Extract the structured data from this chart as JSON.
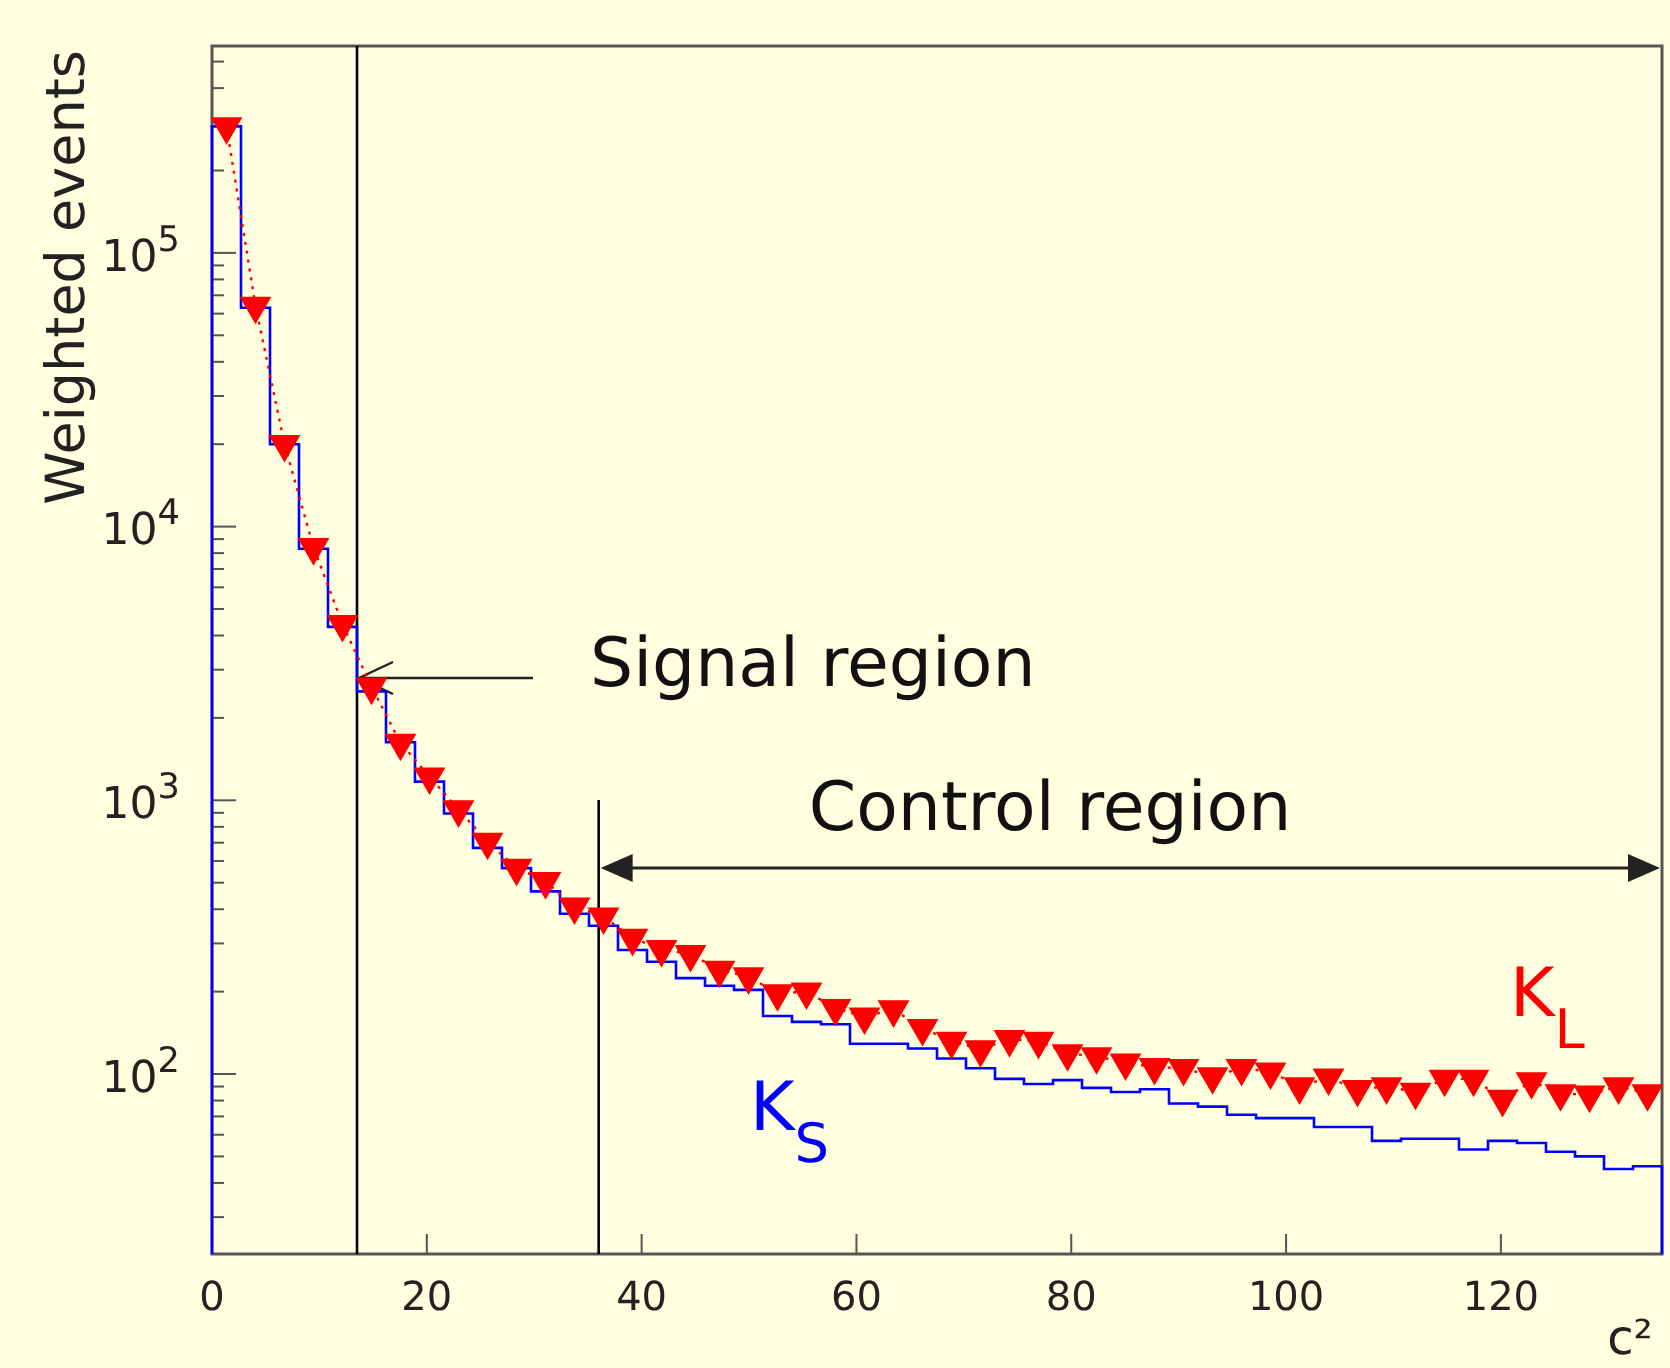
{
  "chart_data": {
    "type": "histogram",
    "xlabel": "c²",
    "ylabel": "Weighted events",
    "bins": [
      0,
      2.7,
      5.4,
      8.1,
      10.8,
      13.5,
      16.2,
      18.9,
      21.6,
      24.3,
      27,
      29.7,
      32.4,
      35.1,
      37.8,
      40.5,
      43.2,
      45.9,
      48.6,
      51.3,
      54,
      56.7,
      59.4,
      62.1,
      64.8,
      67.5,
      70.2,
      72.9,
      75.6,
      78.3,
      81,
      83.7,
      86.4,
      89.1,
      91.8,
      94.5,
      97.2,
      99.9,
      102.6,
      105.3,
      108,
      110.7,
      113.4,
      116.1,
      118.8,
      121.5,
      124.2,
      126.9,
      129.6,
      132.3,
      135
    ],
    "series": [
      {
        "name": "K$_{S}$",
        "color": "#0000ff",
        "values": [
          290000,
          63000,
          20000,
          8300,
          4300,
          2500,
          1630,
          1170,
          895,
          670,
          565,
          465,
          385,
          348,
          284,
          257,
          224,
          210,
          203,
          163,
          155,
          152,
          129,
          129,
          124,
          114,
          105,
          96,
          92,
          95,
          89,
          86,
          88,
          78,
          76,
          71,
          69,
          69,
          64,
          64,
          57,
          58,
          58,
          53,
          57,
          56,
          52,
          50,
          45,
          46
        ]
      },
      {
        "name": "K$_{L}$",
        "type": "line",
        "marker": "triangle",
        "line_style": "dotted",
        "color": "#ff0000",
        "x": [
          1.35,
          4.05,
          6.75,
          9.45,
          12.15,
          14.85,
          17.55,
          20.25,
          22.95,
          25.65,
          28.35,
          31.05,
          33.75,
          36.45,
          39.15,
          41.85,
          44.55,
          47.25,
          49.95,
          52.65,
          55.35,
          58.05,
          60.75,
          63.45,
          66.15,
          68.85,
          71.55,
          74.25,
          76.95,
          79.65,
          82.35,
          85.05,
          87.75,
          90.45,
          93.15,
          95.85,
          98.55,
          101.25,
          103.95,
          106.65,
          109.35,
          112.05,
          114.75,
          117.45,
          120.15,
          122.85,
          125.55,
          128.25,
          130.95,
          133.65
        ],
        "values": [
          290000,
          64000,
          20000,
          8400,
          4400,
          2600,
          1620,
          1220,
          925,
          705,
          566,
          506,
          409,
          376,
          314,
          286,
          274,
          240,
          227,
          197,
          200,
          174,
          162,
          172,
          147,
          132,
          123,
          134,
          132,
          119,
          116,
          110,
          106,
          105,
          98,
          105,
          102,
          90,
          97,
          88,
          90,
          86,
          96,
          96,
          81,
          94,
          85,
          84,
          90,
          85
        ]
      }
    ],
    "xlim": [
      0,
      135
    ],
    "xticks": [
      0,
      20,
      40,
      60,
      80,
      100,
      120
    ],
    "ylim": [
      22,
      570000
    ],
    "log": "y",
    "yticks": [
      {
        "value": 30,
        "label": null
      },
      {
        "value": 40,
        "label": null
      },
      {
        "value": 50,
        "label": null
      },
      {
        "value": 60,
        "label": null
      },
      {
        "value": 70,
        "label": null
      },
      {
        "value": 80,
        "label": null
      },
      {
        "value": 90,
        "label": null
      },
      {
        "value": 100,
        "label": "10$^{2}$"
      },
      {
        "value": 200,
        "label": null
      },
      {
        "value": 300,
        "label": null
      },
      {
        "value": 400,
        "label": null
      },
      {
        "value": 500,
        "label": null
      },
      {
        "value": 600,
        "label": null
      },
      {
        "value": 700,
        "label": null
      },
      {
        "value": 800,
        "label": null
      },
      {
        "value": 900,
        "label": null
      },
      {
        "value": 1000,
        "label": "10$^{3}$"
      },
      {
        "value": 2000,
        "label": null
      },
      {
        "value": 3000,
        "label": null
      },
      {
        "value": 4000,
        "label": null
      },
      {
        "value": 5000,
        "label": null
      },
      {
        "value": 6000,
        "label": null
      },
      {
        "value": 7000,
        "label": null
      },
      {
        "value": 8000,
        "label": null
      },
      {
        "value": 9000,
        "label": null
      },
      {
        "value": 10000,
        "label": "10$^{4}$"
      },
      {
        "value": 20000,
        "label": null
      },
      {
        "value": 30000,
        "label": null
      },
      {
        "value": 40000,
        "label": null
      },
      {
        "value": 50000,
        "label": null
      },
      {
        "value": 60000,
        "label": null
      },
      {
        "value": 70000,
        "label": null
      },
      {
        "value": 80000,
        "label": null
      },
      {
        "value": 90000,
        "label": null
      },
      {
        "value": 100000,
        "label": "10$^{5}$"
      },
      {
        "value": 200000,
        "label": null
      },
      {
        "value": 300000,
        "label": null
      },
      {
        "value": 400000,
        "label": null
      },
      {
        "value": 500000,
        "label": null
      }
    ],
    "ref_lines": [
      {
        "axis": "x",
        "value": 13.5,
        "label": "Signal region",
        "color": "#000000"
      },
      {
        "axis": "x",
        "value": 36,
        "color": "#000000"
      }
    ],
    "annotations": [
      "Control region"
    ],
    "grid": false,
    "legend": false
  }
}
